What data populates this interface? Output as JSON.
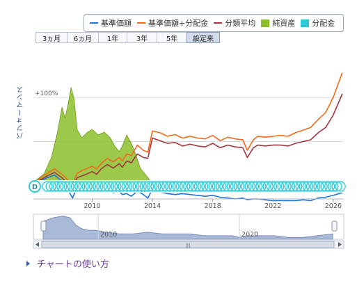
{
  "legend": [
    {
      "label": "基準価額",
      "color": "#1f73d9",
      "kind": "line"
    },
    {
      "label": "基準価額+分配金",
      "color": "#f26a1b",
      "kind": "line"
    },
    {
      "label": "分類平均",
      "color": "#a1373f",
      "kind": "line"
    },
    {
      "label": "純資産",
      "color": "#8cbf2a",
      "kind": "box"
    },
    {
      "label": "分配金",
      "color": "#2fc9d6",
      "kind": "box"
    }
  ],
  "ranges": [
    {
      "label": "3ヵ月",
      "active": false
    },
    {
      "label": "6ヵ月",
      "active": false
    },
    {
      "label": "1年",
      "active": false
    },
    {
      "label": "3年",
      "active": false
    },
    {
      "label": "5年",
      "active": false
    },
    {
      "label": "設定来",
      "active": true
    }
  ],
  "y_axis_label": "パフォーマンス",
  "help_link": "チャートの使い方",
  "chart_data": {
    "type": "line",
    "xlabel": "",
    "ylabel": "パフォーマンス",
    "y_tick_labels": [
      "+100%"
    ],
    "ylim_percent": [
      -15,
      160
    ],
    "x_tick_labels": [
      "2010",
      "2014",
      "2018",
      "2022",
      "2026"
    ],
    "xlim_year": [
      2006.1,
      2026.7
    ],
    "series": [
      {
        "name": "基準価額",
        "color": "#1f73d9",
        "x": [
          2006.1,
          2006.5,
          2007.0,
          2007.5,
          2008.0,
          2008.3,
          2008.7,
          2008.85,
          2009.0,
          2009.3,
          2009.6,
          2010.0,
          2010.3,
          2010.6,
          2011.0,
          2011.4,
          2011.8,
          2012.0,
          2012.3,
          2012.6,
          2013.0,
          2013.4,
          2013.7,
          2014.0,
          2014.5,
          2015.0,
          2015.5,
          2016.0,
          2016.5,
          2017.0,
          2017.5,
          2018.0,
          2018.5,
          2019.0,
          2019.5,
          2020.0,
          2020.3,
          2020.7,
          2021.0,
          2021.5,
          2022.0,
          2022.5,
          2023.0,
          2023.5,
          2024.0,
          2024.5,
          2025.0,
          2025.5,
          2026.0,
          2026.6
        ],
        "y": [
          1,
          5,
          9,
          12,
          5,
          -2,
          -14,
          -8,
          -4,
          -2,
          -3,
          -1,
          -6,
          -3,
          -2,
          -8,
          -6,
          -10,
          -9,
          -12,
          -6,
          -10,
          -14,
          -4,
          -7,
          -9,
          -10,
          -9,
          -10,
          -11,
          -12,
          -11,
          -13,
          -14,
          -15,
          -14,
          -16,
          -15,
          -15,
          -16,
          -17,
          -17,
          -17,
          -17,
          -16,
          -17,
          -14,
          -13,
          -11,
          -8
        ]
      },
      {
        "name": "基準価額+分配金",
        "color": "#f26a1b",
        "x": [
          2006.1,
          2006.5,
          2007.0,
          2007.5,
          2008.0,
          2008.3,
          2008.7,
          2008.85,
          2009.0,
          2009.3,
          2009.6,
          2010.0,
          2010.3,
          2010.6,
          2011.0,
          2011.4,
          2011.8,
          2012.0,
          2012.3,
          2012.6,
          2013.0,
          2013.4,
          2013.7,
          2014.0,
          2014.5,
          2015.0,
          2015.5,
          2016.0,
          2016.5,
          2017.0,
          2017.5,
          2018.0,
          2018.5,
          2019.0,
          2019.5,
          2020.0,
          2020.3,
          2020.7,
          2021.0,
          2021.5,
          2022.0,
          2022.5,
          2023.0,
          2023.5,
          2024.0,
          2024.5,
          2025.0,
          2025.5,
          2026.0,
          2026.6
        ],
        "y": [
          2,
          8,
          14,
          19,
          13,
          8,
          -2,
          8,
          14,
          17,
          19,
          22,
          19,
          25,
          31,
          27,
          32,
          28,
          36,
          34,
          46,
          40,
          38,
          62,
          60,
          56,
          58,
          54,
          56,
          54,
          53,
          57,
          51,
          55,
          53,
          52,
          40,
          52,
          56,
          55,
          56,
          57,
          56,
          60,
          63,
          66,
          75,
          83,
          100,
          128
        ]
      },
      {
        "name": "分類平均",
        "color": "#a1373f",
        "x": [
          2006.1,
          2006.5,
          2007.0,
          2007.5,
          2008.0,
          2008.3,
          2008.7,
          2008.85,
          2009.0,
          2009.3,
          2009.6,
          2010.0,
          2010.3,
          2010.6,
          2011.0,
          2011.4,
          2011.8,
          2012.0,
          2012.3,
          2012.6,
          2013.0,
          2013.4,
          2013.7,
          2014.0,
          2014.5,
          2015.0,
          2015.5,
          2016.0,
          2016.5,
          2017.0,
          2017.5,
          2018.0,
          2018.5,
          2019.0,
          2019.5,
          2020.0,
          2020.3,
          2020.7,
          2021.0,
          2021.5,
          2022.0,
          2022.5,
          2023.0,
          2023.5,
          2024.0,
          2024.5,
          2025.0,
          2025.5,
          2026.0,
          2026.6
        ],
        "y": [
          1,
          6,
          11,
          15,
          9,
          4,
          -5,
          4,
          9,
          11,
          13,
          16,
          13,
          19,
          24,
          20,
          25,
          21,
          28,
          26,
          36,
          32,
          31,
          54,
          51,
          48,
          49,
          45,
          47,
          45,
          44,
          48,
          43,
          46,
          44,
          43,
          32,
          43,
          46,
          45,
          46,
          46,
          45,
          48,
          50,
          52,
          60,
          66,
          80,
          104
        ]
      }
    ],
    "area": {
      "name": "純資産",
      "color": "#8cbf2a",
      "x": [
        2006.1,
        2006.8,
        2007.3,
        2007.7,
        2008.0,
        2008.2,
        2008.4,
        2008.6,
        2008.8,
        2009.0,
        2009.3,
        2009.7,
        2010.0,
        2010.4,
        2010.8,
        2011.2,
        2011.5,
        2011.8,
        2012.0,
        2012.3,
        2012.6,
        2012.9,
        2013.2,
        2013.5,
        2013.8,
        2014.0
      ],
      "y": [
        0,
        3,
        9,
        18,
        27,
        23,
        28,
        34,
        30,
        19,
        16,
        18,
        19,
        17,
        18,
        16,
        13,
        11,
        13,
        17,
        14,
        10,
        5,
        3,
        1,
        0
      ]
    },
    "distributions": {
      "name": "分配金",
      "color": "#2fc9d6",
      "marker_label": "D",
      "start_year": 2006.1,
      "end_year": 2026.5
    }
  },
  "navigator": {
    "x_tick_labels": [
      "2010",
      "2020"
    ],
    "x": [
      2006.1,
      2006.8,
      2007.5,
      2008.0,
      2008.4,
      2008.8,
      2009.3,
      2009.8,
      2010.5,
      2011.5,
      2012.5,
      2013.5,
      2014.5,
      2015.5,
      2016.5,
      2017.5,
      2018.5,
      2019.5,
      2020.0,
      2020.5,
      2021.5,
      2022.5,
      2023.5,
      2024.5,
      2025.5,
      2026.6
    ],
    "y": [
      10,
      12,
      13,
      12,
      8,
      6,
      5,
      5,
      4,
      3,
      3,
      4,
      3,
      3,
      3,
      2,
      2,
      2,
      1,
      2,
      2,
      2,
      1,
      1,
      2,
      3
    ],
    "ylim": [
      0,
      14
    ]
  }
}
